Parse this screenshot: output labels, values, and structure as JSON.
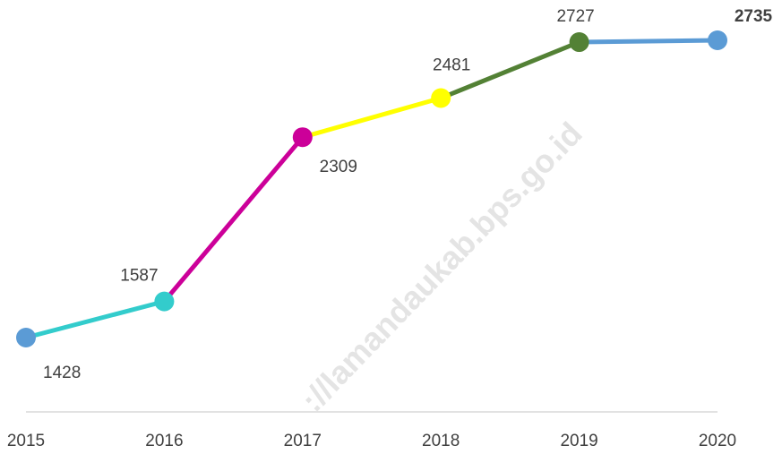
{
  "chart_data": {
    "type": "line",
    "categories": [
      "2015",
      "2016",
      "2017",
      "2018",
      "2019",
      "2020"
    ],
    "values": [
      1428,
      1587,
      2309,
      2481,
      2727,
      2735
    ],
    "point_colors": [
      "#5b9bd5",
      "#33cccc",
      "#cc0099",
      "#ffff00",
      "#538135",
      "#5b9bd5"
    ],
    "watermark": "://lamandaukab.bps.go.id"
  }
}
